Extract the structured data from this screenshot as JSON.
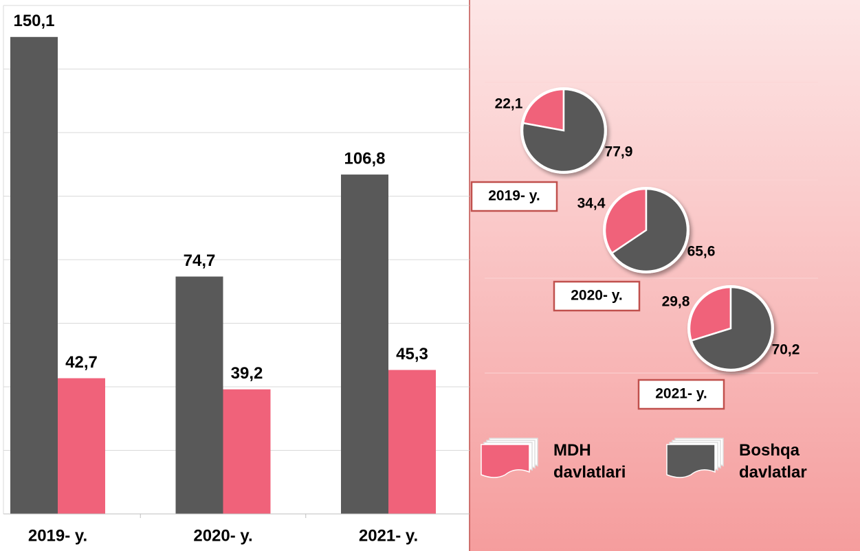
{
  "chart_data": [
    {
      "type": "bar",
      "categories": [
        "2019- y.",
        "2020- y.",
        "2021- y."
      ],
      "series": [
        {
          "name": "Boshqa davlatlar",
          "color": "#595959",
          "values": [
            150.1,
            74.7,
            106.8
          ],
          "value_labels": [
            "150,1",
            "74,7",
            "106,8"
          ]
        },
        {
          "name": "MDH davlatlari",
          "color": "#f0627a",
          "values": [
            42.7,
            39.2,
            45.3
          ],
          "value_labels": [
            "42,7",
            "39,2",
            "45,3"
          ]
        }
      ],
      "ylim": [
        0,
        160
      ],
      "yticks": [
        0,
        20,
        40,
        60,
        80,
        100,
        120,
        140,
        160
      ],
      "grid": true
    },
    {
      "type": "pie",
      "title": "2019- y.",
      "values": [
        22.1,
        77.9
      ],
      "value_labels": [
        "22,1",
        "77,9"
      ],
      "colors": [
        "#f0627a",
        "#595959"
      ]
    },
    {
      "type": "pie",
      "title": "2020- y.",
      "values": [
        34.4,
        65.6
      ],
      "value_labels": [
        "34,4",
        "65,6"
      ],
      "colors": [
        "#f0627a",
        "#595959"
      ]
    },
    {
      "type": "pie",
      "title": "2021- y.",
      "values": [
        29.8,
        70.2
      ],
      "value_labels": [
        "29,8",
        "70,2"
      ],
      "colors": [
        "#f0627a",
        "#595959"
      ]
    }
  ]
}
